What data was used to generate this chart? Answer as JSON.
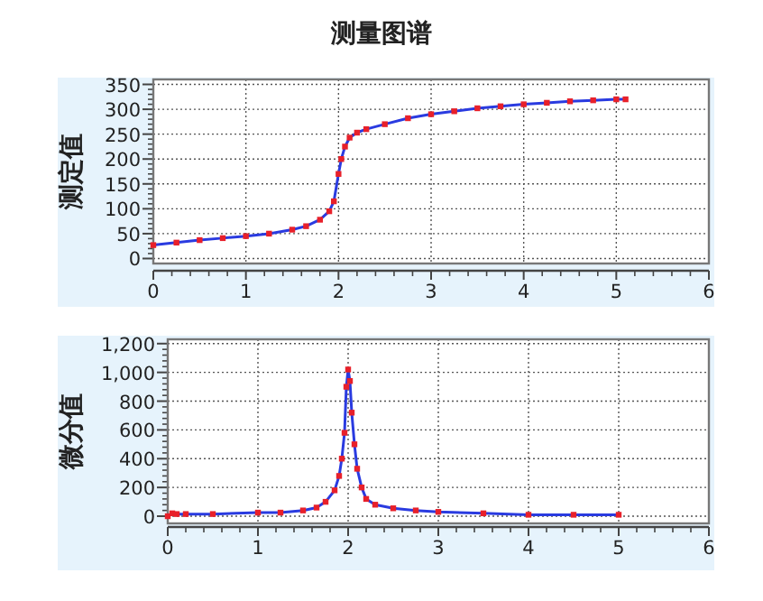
{
  "chart_data": [
    {
      "type": "line",
      "title": "测量图谱",
      "ylabel": "测定值",
      "xlim": [
        0,
        6
      ],
      "xticks": [
        0,
        1,
        2,
        3,
        4,
        5,
        6
      ],
      "ylim": [
        -10,
        360
      ],
      "yticks": [
        0,
        50,
        100,
        150,
        200,
        250,
        300,
        350
      ],
      "grid": true,
      "x": [
        0,
        0.25,
        0.5,
        0.75,
        1,
        1.25,
        1.5,
        1.65,
        1.8,
        1.9,
        1.95,
        2.0,
        2.03,
        2.07,
        2.12,
        2.2,
        2.3,
        2.5,
        2.75,
        3,
        3.25,
        3.5,
        3.75,
        4,
        4.25,
        4.5,
        4.75,
        5,
        5.1
      ],
      "series": [
        {
          "type": "line",
          "color": "#2a3be0",
          "line_style": "solid",
          "values": [
            27,
            32,
            37,
            41,
            45,
            50,
            58,
            65,
            78,
            95,
            115,
            170,
            200,
            225,
            243,
            253,
            260,
            270,
            282,
            290,
            296,
            302,
            306,
            310,
            313,
            316,
            318,
            320,
            320
          ]
        },
        {
          "type": "scatter",
          "color": "#e8202a",
          "marker": "square",
          "values": [
            27,
            32,
            37,
            41,
            45,
            50,
            58,
            65,
            78,
            95,
            115,
            170,
            200,
            225,
            243,
            253,
            260,
            270,
            282,
            290,
            296,
            302,
            306,
            310,
            313,
            316,
            318,
            320,
            320
          ]
        }
      ]
    },
    {
      "type": "line",
      "ylabel": "微分值",
      "xlim": [
        0,
        6
      ],
      "xticks": [
        0,
        1,
        2,
        3,
        4,
        5,
        6
      ],
      "ylim": [
        -50,
        1230
      ],
      "yticks": [
        0,
        200,
        400,
        600,
        800,
        {
          "value": 1000,
          "label": "1,000"
        },
        {
          "value": 1200,
          "label": "1,200"
        }
      ],
      "grid": true,
      "x": [
        0,
        0.05,
        0.1,
        0.2,
        0.5,
        1,
        1.25,
        1.5,
        1.65,
        1.75,
        1.85,
        1.9,
        1.93,
        1.96,
        1.98,
        2.0,
        2.02,
        2.04,
        2.07,
        2.1,
        2.15,
        2.2,
        2.3,
        2.5,
        2.75,
        3,
        3.5,
        4,
        4.5,
        5
      ],
      "series": [
        {
          "type": "line",
          "color": "#2a3be0",
          "line_style": "solid",
          "values": [
            0,
            20,
            15,
            15,
            15,
            25,
            25,
            40,
            60,
            100,
            180,
            280,
            400,
            580,
            900,
            1020,
            940,
            720,
            500,
            330,
            200,
            120,
            80,
            55,
            40,
            30,
            20,
            10,
            10,
            10
          ]
        },
        {
          "type": "scatter",
          "color": "#e8202a",
          "marker": "square",
          "values": [
            0,
            20,
            15,
            15,
            15,
            25,
            25,
            40,
            60,
            100,
            180,
            280,
            400,
            580,
            900,
            1020,
            940,
            720,
            500,
            330,
            200,
            120,
            80,
            55,
            40,
            30,
            20,
            10,
            10,
            10
          ]
        }
      ]
    }
  ]
}
